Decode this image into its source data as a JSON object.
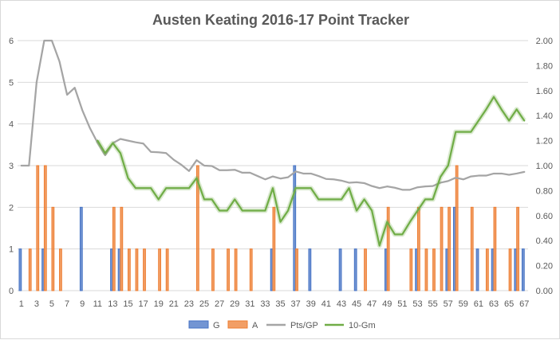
{
  "chart_data": {
    "type": "bar",
    "title": "Austen Keating 2016-17 Point Tracker",
    "x": [
      1,
      2,
      3,
      4,
      5,
      6,
      7,
      8,
      9,
      10,
      11,
      12,
      13,
      14,
      15,
      16,
      17,
      18,
      19,
      20,
      21,
      22,
      23,
      24,
      25,
      26,
      27,
      28,
      29,
      30,
      31,
      32,
      33,
      34,
      35,
      36,
      37,
      38,
      39,
      40,
      41,
      42,
      43,
      44,
      45,
      46,
      47,
      48,
      49,
      50,
      51,
      52,
      53,
      54,
      55,
      56,
      57,
      58,
      59,
      60,
      61,
      62,
      63,
      64,
      65,
      66,
      67
    ],
    "x_tick_labels": [
      "1",
      "3",
      "5",
      "7",
      "9",
      "11",
      "13",
      "15",
      "17",
      "19",
      "21",
      "23",
      "25",
      "27",
      "29",
      "31",
      "33",
      "35",
      "37",
      "39",
      "41",
      "43",
      "45",
      "47",
      "49",
      "51",
      "53",
      "55",
      "57",
      "59",
      "61",
      "63",
      "65",
      "67"
    ],
    "ylim_left": [
      0,
      6
    ],
    "yticks_left": [
      "0",
      "1",
      "2",
      "3",
      "4",
      "5",
      "6"
    ],
    "ylim_right": [
      0,
      2
    ],
    "yticks_right": [
      "0.00",
      "0.20",
      "0.40",
      "0.60",
      "0.80",
      "1.00",
      "1.20",
      "1.40",
      "1.60",
      "1.80",
      "2.00"
    ],
    "grid": true,
    "legend_position": "bottom",
    "series": [
      {
        "name": "G",
        "kind": "bar",
        "axis": "left",
        "color": "#4472c4",
        "values": [
          1,
          0,
          0,
          1,
          0,
          0,
          0,
          0,
          2,
          0,
          0,
          0,
          1,
          1,
          0,
          0,
          0,
          0,
          0,
          0,
          0,
          0,
          0,
          0,
          0,
          0,
          0,
          0,
          0,
          0,
          0,
          0,
          0,
          1,
          0,
          0,
          3,
          0,
          1,
          0,
          0,
          0,
          1,
          0,
          1,
          0,
          0,
          0,
          1,
          0,
          0,
          0,
          1,
          0,
          0,
          0,
          1,
          2,
          0,
          0,
          1,
          0,
          1,
          0,
          0,
          1,
          1
        ]
      },
      {
        "name": "A",
        "kind": "bar",
        "axis": "left",
        "color": "#ed7d31",
        "values": [
          0,
          1,
          3,
          3,
          2,
          1,
          0,
          0,
          0,
          0,
          0,
          0,
          2,
          2,
          1,
          1,
          1,
          0,
          1,
          1,
          0,
          0,
          0,
          3,
          0,
          1,
          0,
          1,
          1,
          0,
          1,
          0,
          0,
          2,
          0,
          0,
          1,
          0,
          0,
          0,
          0,
          0,
          0,
          0,
          0,
          1,
          0,
          0,
          2,
          0,
          0,
          1,
          2,
          1,
          1,
          2,
          2,
          3,
          0,
          2,
          0,
          1,
          2,
          0,
          1,
          2,
          0
        ]
      },
      {
        "name": "Pts/GP",
        "kind": "line",
        "axis": "left",
        "color": "#a5a5a5",
        "values": [
          3.0,
          3.0,
          5.0,
          6.0,
          6.0,
          5.5,
          4.7,
          4.87,
          4.33,
          3.9,
          3.55,
          3.25,
          3.54,
          3.64,
          3.6,
          3.56,
          3.53,
          3.33,
          3.32,
          3.3,
          3.14,
          3.02,
          2.87,
          3.13,
          3.0,
          2.99,
          2.89,
          2.89,
          2.9,
          2.83,
          2.83,
          2.75,
          2.67,
          2.74,
          2.69,
          2.72,
          2.86,
          2.81,
          2.81,
          2.75,
          2.68,
          2.67,
          2.64,
          2.59,
          2.6,
          2.58,
          2.51,
          2.46,
          2.5,
          2.47,
          2.42,
          2.42,
          2.48,
          2.5,
          2.51,
          2.59,
          2.63,
          2.71,
          2.67,
          2.74,
          2.76,
          2.76,
          2.81,
          2.81,
          2.78,
          2.81,
          2.85
        ]
      },
      {
        "name": "10-Gm",
        "kind": "line",
        "axis": "right",
        "color": "#70ad47",
        "values": [
          null,
          null,
          null,
          null,
          null,
          null,
          null,
          null,
          null,
          null,
          1.2,
          1.1,
          1.18,
          1.1,
          0.9,
          0.82,
          0.82,
          0.82,
          0.73,
          0.82,
          0.82,
          0.82,
          0.82,
          0.9,
          0.73,
          0.73,
          0.64,
          0.64,
          0.73,
          0.64,
          0.64,
          0.64,
          0.64,
          0.82,
          0.55,
          0.64,
          0.82,
          0.82,
          0.82,
          0.73,
          0.73,
          0.73,
          0.73,
          0.82,
          0.64,
          0.73,
          0.64,
          0.36,
          0.55,
          0.45,
          0.45,
          0.55,
          0.64,
          0.73,
          0.73,
          0.91,
          1.0,
          1.27,
          1.27,
          1.27,
          1.36,
          1.45,
          1.55,
          1.45,
          1.36,
          1.45,
          1.36
        ]
      }
    ]
  }
}
